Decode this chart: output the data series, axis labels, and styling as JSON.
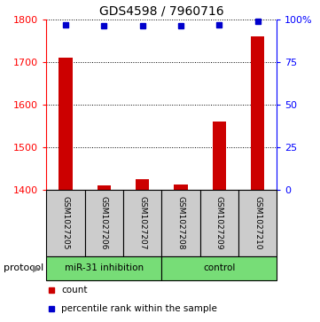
{
  "title": "GDS4598 / 7960716",
  "samples": [
    "GSM1027205",
    "GSM1027206",
    "GSM1027207",
    "GSM1027208",
    "GSM1027209",
    "GSM1027210"
  ],
  "counts": [
    1710,
    1410,
    1425,
    1413,
    1560,
    1760
  ],
  "percentile_ranks": [
    97,
    96,
    96,
    96,
    97,
    99
  ],
  "ylim_left": [
    1400,
    1800
  ],
  "ylim_right": [
    0,
    100
  ],
  "yticks_left": [
    1400,
    1500,
    1600,
    1700,
    1800
  ],
  "yticks_right": [
    0,
    25,
    50,
    75,
    100
  ],
  "bar_color": "#cc0000",
  "dot_color": "#0000cc",
  "background_color": "#ffffff",
  "group_labels": [
    "miR-31 inhibition",
    "control"
  ],
  "group_color": "#77dd77",
  "protocol_label": "protocol",
  "legend_count_label": "count",
  "legend_percentile_label": "percentile rank within the sample",
  "bar_width": 0.35,
  "title_fontsize": 10,
  "tick_fontsize": 8,
  "label_fontsize": 6.5,
  "proto_fontsize": 7.5,
  "legend_fontsize": 7.5
}
